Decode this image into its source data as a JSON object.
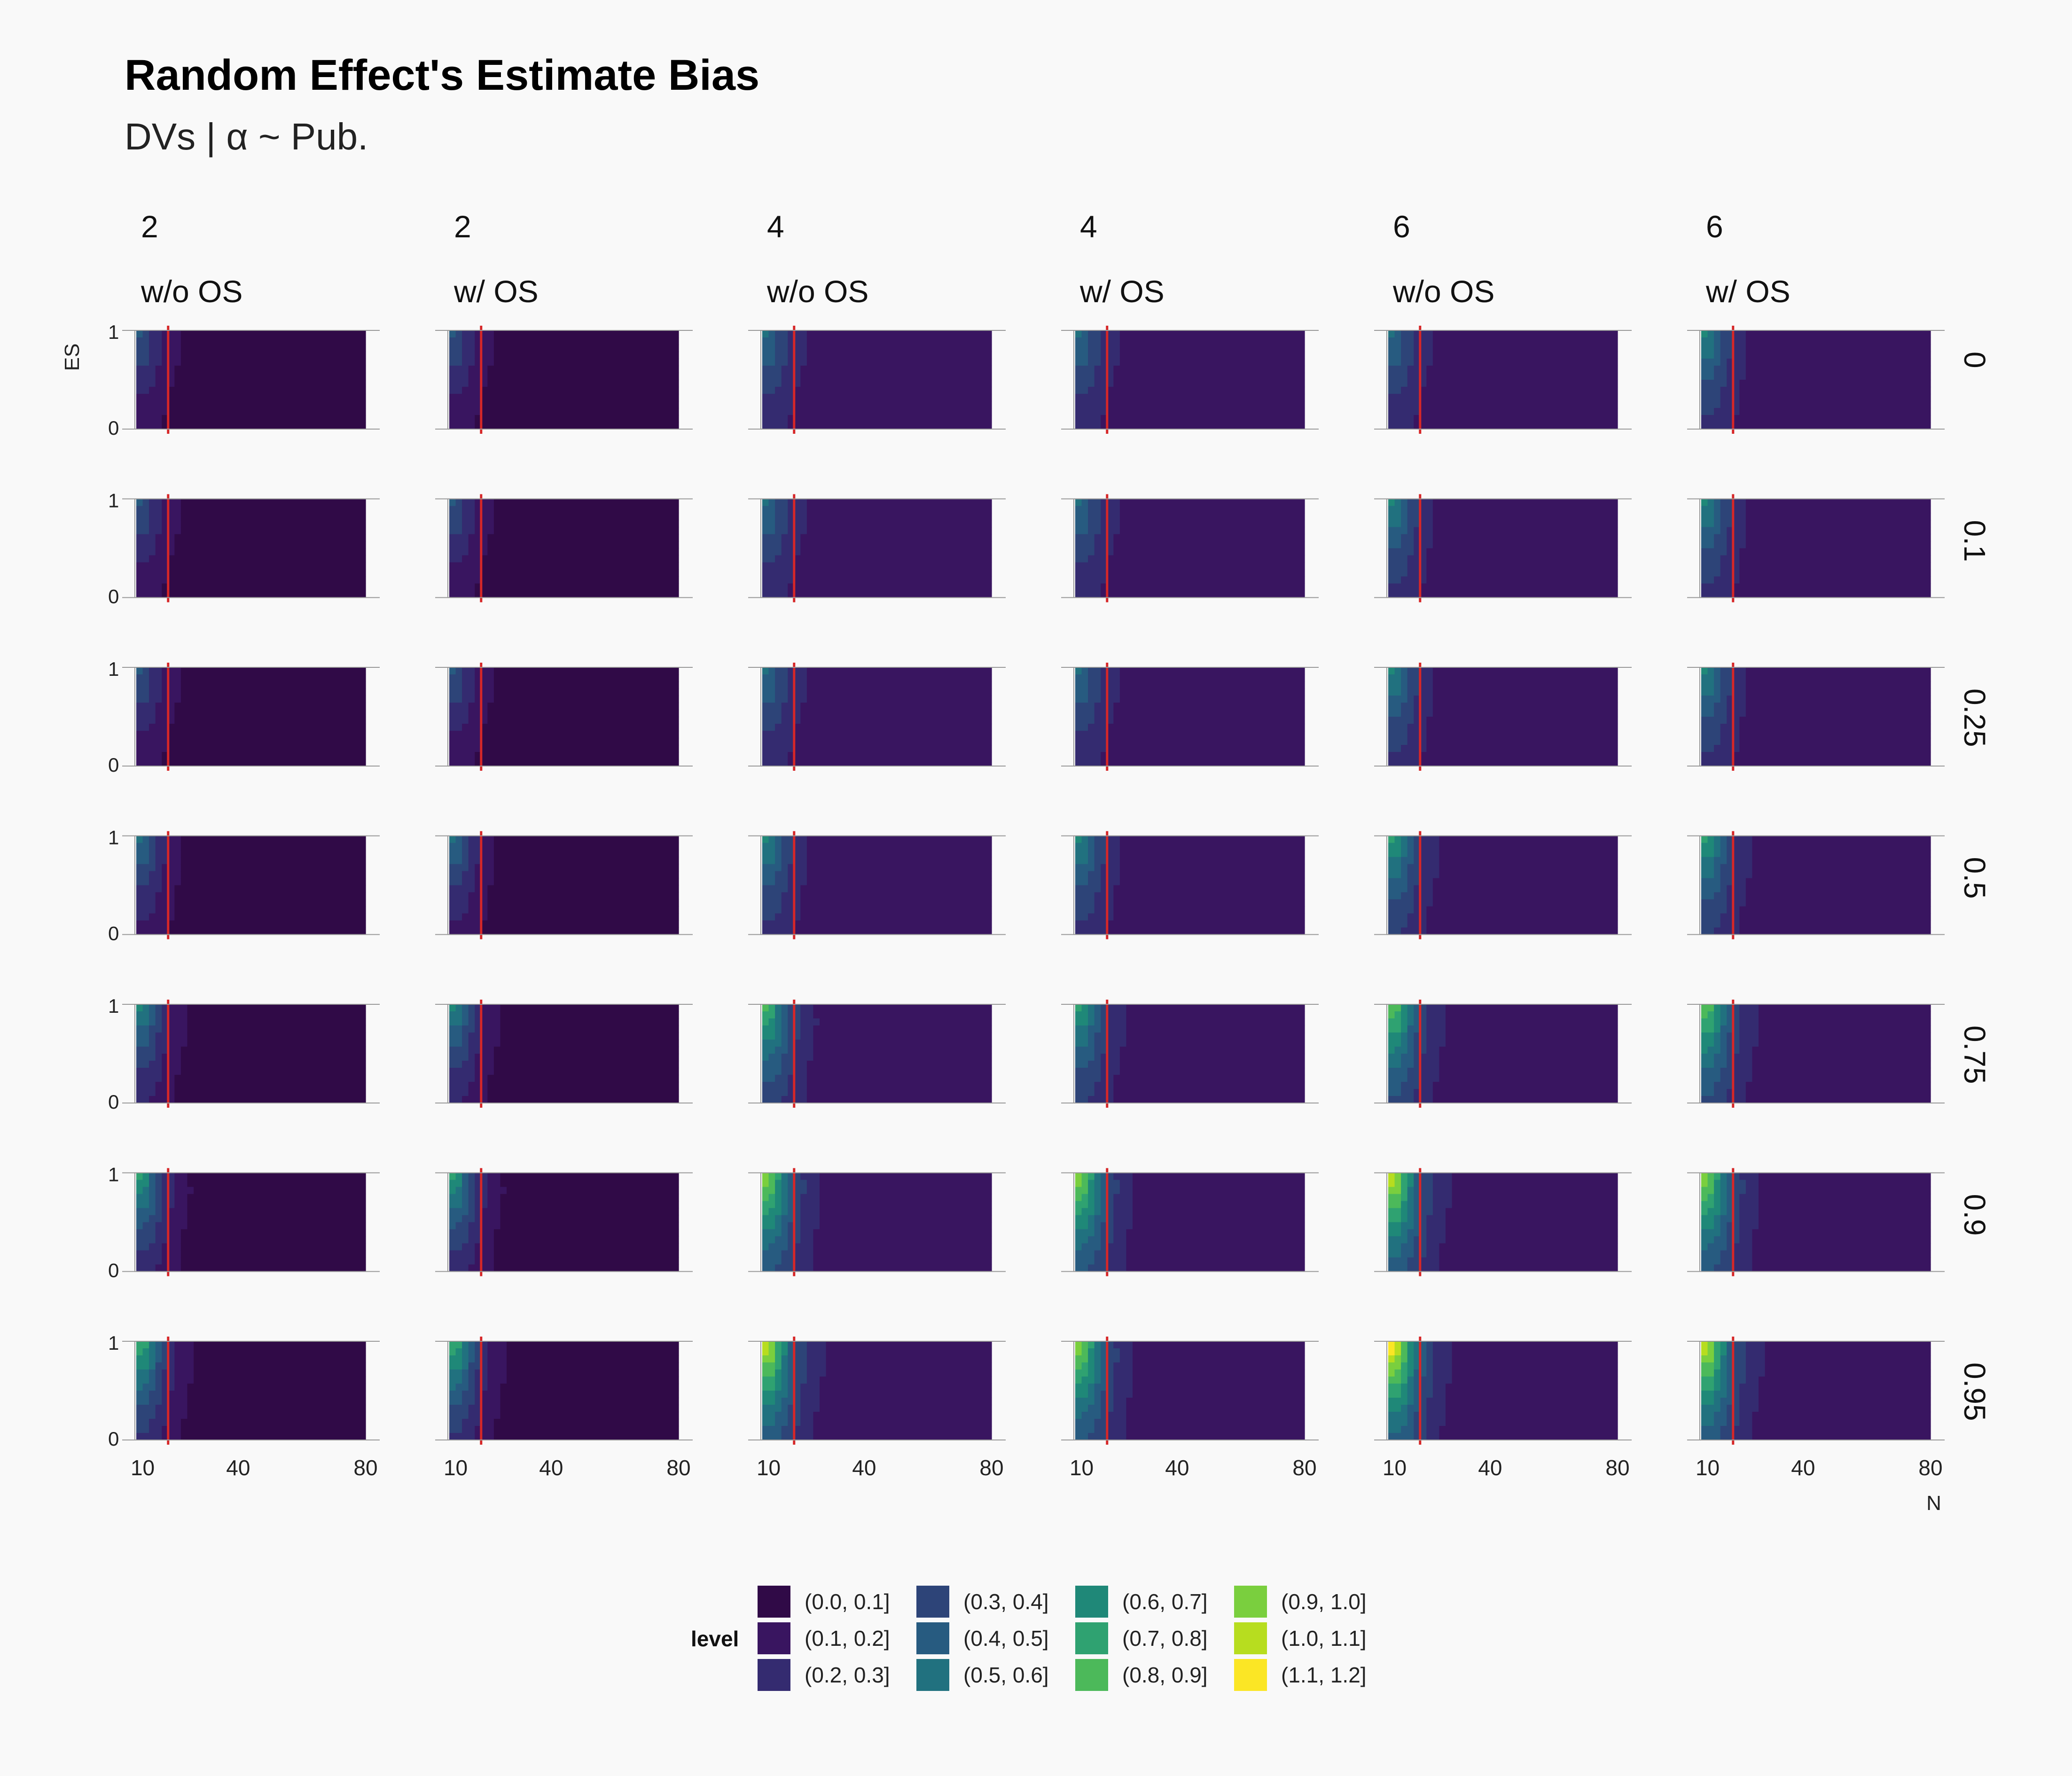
{
  "title": "Random Effect's Estimate Bias",
  "subtitle": "DVs | α ~ Pub.",
  "chart_data": {
    "type": "heatmap",
    "subtype": "filled contour, faceted grid",
    "columns": [
      {
        "number": "2",
        "os": "w/o OS"
      },
      {
        "number": "2",
        "os": "w/ OS"
      },
      {
        "number": "4",
        "os": "w/o OS"
      },
      {
        "number": "4",
        "os": "w/ OS"
      },
      {
        "number": "6",
        "os": "w/o OS"
      },
      {
        "number": "6",
        "os": "w/ OS"
      }
    ],
    "rows": [
      "0",
      "0.1",
      "0.25",
      "0.5",
      "0.75",
      "0.9",
      "0.95"
    ],
    "x_axis": {
      "label": "N",
      "ticks": [
        "10",
        "40",
        "80"
      ],
      "range": [
        8,
        80
      ]
    },
    "y_axis": {
      "label": "ES",
      "ticks": [
        "0",
        "1"
      ],
      "range": [
        0,
        1
      ]
    },
    "reference_line": {
      "x": 18,
      "color": "#d62728"
    },
    "legend": {
      "title": "level",
      "position": "bottom",
      "items": [
        {
          "label": "(0.0, 0.1]",
          "color": "#300a47"
        },
        {
          "label": "(0.1, 0.2]",
          "color": "#391560"
        },
        {
          "label": "(0.2, 0.3]",
          "color": "#342b70"
        },
        {
          "label": "(0.3, 0.4]",
          "color": "#2d4478"
        },
        {
          "label": "(0.4, 0.5]",
          "color": "#275b80"
        },
        {
          "label": "(0.5, 0.6]",
          "color": "#21717f"
        },
        {
          "label": "(0.6, 0.7]",
          "color": "#1f8878"
        },
        {
          "label": "(0.7, 0.8]",
          "color": "#2fa271"
        },
        {
          "label": "(0.8, 0.9]",
          "color": "#4cb95a"
        },
        {
          "label": "(0.9, 1.0]",
          "color": "#7acf3e"
        },
        {
          "label": "(1.0, 1.1]",
          "color": "#b7dd1f"
        },
        {
          "label": "(1.1, 1.2]",
          "color": "#fbe625"
        }
      ]
    },
    "peak_level_at_n10_es1": [
      [
        0.4,
        0.4,
        0.5,
        0.5,
        0.5,
        0.6
      ],
      [
        0.4,
        0.4,
        0.5,
        0.5,
        0.6,
        0.6
      ],
      [
        0.4,
        0.4,
        0.5,
        0.5,
        0.6,
        0.6
      ],
      [
        0.5,
        0.5,
        0.6,
        0.6,
        0.7,
        0.7
      ],
      [
        0.6,
        0.6,
        0.8,
        0.7,
        0.9,
        0.9
      ],
      [
        0.7,
        0.7,
        1.0,
        1.0,
        1.1,
        1.0
      ],
      [
        0.8,
        0.8,
        1.1,
        1.0,
        1.2,
        1.1
      ]
    ],
    "floor_level": [
      0.0,
      0.0,
      0.1,
      0.1,
      0.1,
      0.1
    ]
  }
}
